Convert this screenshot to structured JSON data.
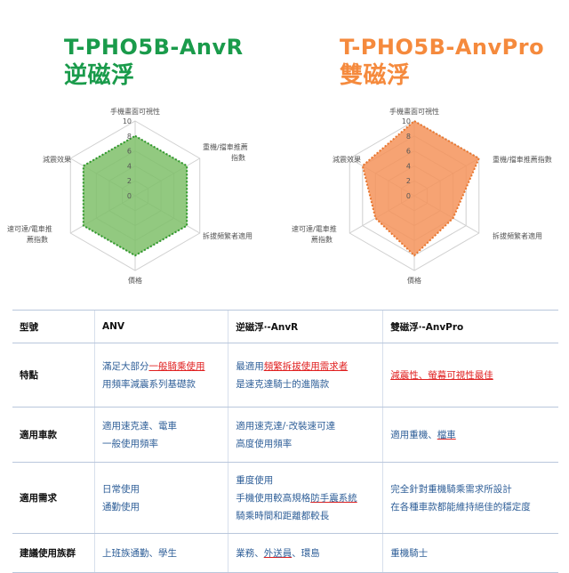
{
  "left": {
    "model": "T-PHO5B-AnvR",
    "name": "逆磁浮",
    "color": "#1a9b4b"
  },
  "right": {
    "model": "T-PHO5B-AnvPro",
    "name": "雙磁浮",
    "color": "#f58a3d"
  },
  "chart_data": [
    {
      "type": "radar",
      "axes": [
        "手機畫面可視性",
        "重機/擋車推薦指數",
        "拆拔頻繁者適用",
        "價格",
        "速可達/電車推薦指數",
        "減震效果"
      ],
      "ticks": [
        "0",
        "2",
        "4",
        "6",
        "8",
        "10"
      ],
      "rmax": 10,
      "series": [
        {
          "values": [
            8,
            8,
            8,
            8,
            8,
            8
          ],
          "fill": "#7fc06a",
          "stroke": "#2f9a2a"
        }
      ]
    },
    {
      "type": "radar",
      "axes": [
        "手機畫面可視性",
        "重機/擋車推薦指數",
        "拆拔頻繁者適用",
        "價格",
        "速可達/電車推薦指數",
        "減震效果"
      ],
      "ticks": [
        "0",
        "2",
        "4",
        "6",
        "8",
        "10"
      ],
      "rmax": 10,
      "series": [
        {
          "values": [
            10,
            10,
            6,
            8,
            6,
            8
          ],
          "fill": "#f4935a",
          "stroke": "#e8762e"
        }
      ]
    }
  ],
  "table": {
    "headers": [
      "型號",
      "ANV",
      "逆磁浮‧-AnvR",
      "雙磁浮‧-AnvPro"
    ],
    "rows": [
      {
        "label": "特點",
        "c1": [
          "滿足大部分",
          "一般騎乘使用",
          "用頻率減震系列基礎款"
        ],
        "c2": [
          "最適用",
          "頻繁拆拔使用需求者",
          "是速克達騎士的進階款"
        ],
        "c3": [
          "減震性、螢幕可視性最佳"
        ]
      },
      {
        "label": "適用車款",
        "c1": [
          "適用速克達、電車",
          "一般使用頻率"
        ],
        "c2": [
          "適用速克達/‧改裝速可達",
          "高度使用頻率"
        ],
        "c3": [
          "適用重機、",
          "檔車"
        ]
      },
      {
        "label": "適用需求",
        "c1": [
          "日常使用",
          "通勤使用"
        ],
        "c2": [
          "重度使用",
          "手機使用較高規格",
          "防手震系統",
          "騎乘時間和距離都較長"
        ],
        "c3": [
          "完全針對重機騎乘需求所設計",
          "在各種車款都能維持絕佳的穩定度"
        ]
      },
      {
        "label": "建議使用族群",
        "c1": [
          "上班族通勤、學生"
        ],
        "c2": [
          "業務、",
          "外送員",
          "、環島"
        ],
        "c3": [
          "重機騎士"
        ]
      }
    ]
  }
}
